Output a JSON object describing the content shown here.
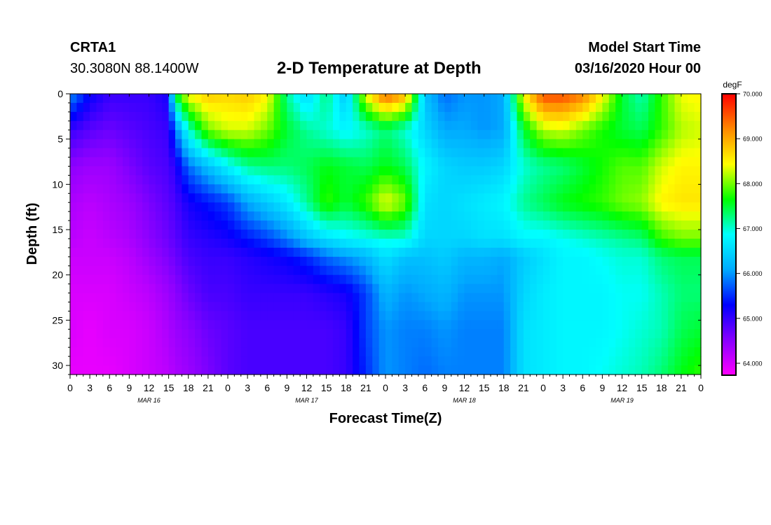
{
  "header": {
    "station": "CRTA1",
    "location": "30.3080N 88.1400W",
    "title": "2-D Temperature at Depth",
    "model_label": "Model Start Time",
    "model_time": "03/16/2020 Hour 00"
  },
  "colorbar": {
    "unit": "degF",
    "ticks": [
      "70.000",
      "69.000",
      "68.000",
      "67.000",
      "66.000",
      "65.000",
      "64.000"
    ]
  },
  "chart_data": {
    "type": "heatmap",
    "title": "2-D Temperature at Depth",
    "xlabel": "Forecast Time(Z)",
    "ylabel": "Depth (ft)",
    "x_tick_labels": [
      "0",
      "3",
      "6",
      "9",
      "12",
      "15",
      "18",
      "21",
      "0",
      "3",
      "6",
      "9",
      "12",
      "15",
      "18",
      "21",
      "0",
      "3",
      "6",
      "9",
      "12",
      "15",
      "18",
      "21",
      "0",
      "3",
      "6",
      "9",
      "12",
      "15",
      "18",
      "21",
      "0"
    ],
    "date_labels": [
      "MAR 16",
      "MAR 17",
      "MAR 18",
      "MAR 19"
    ],
    "xlim_hours": [
      0,
      96
    ],
    "y_tick_labels": [
      "0",
      "5",
      "10",
      "15",
      "20",
      "25",
      "30"
    ],
    "ylim_ft": [
      0,
      31
    ],
    "y_inverted": true,
    "value_range_degF": [
      63.75,
      70.0
    ],
    "colormap": [
      "#ff00ff",
      "#8800ff",
      "#0000ff",
      "#00aaff",
      "#00ffff",
      "#00ff00",
      "#ffff00",
      "#ff8800",
      "#ff0000"
    ],
    "depth_knots_ft": [
      0,
      4,
      8,
      12,
      16,
      18,
      22,
      26,
      31
    ],
    "time_knots_hours": [
      0,
      3,
      6,
      9,
      12,
      15,
      16,
      18,
      21,
      24,
      27,
      30,
      33,
      36,
      39,
      42,
      45,
      48,
      51,
      54,
      57,
      60,
      63,
      66,
      69,
      72,
      75,
      78,
      81,
      84,
      87,
      90,
      93,
      96
    ],
    "temperature_degF": [
      [
        66.0,
        65.0,
        64.5,
        64.3,
        64.2,
        64.1,
        64.0,
        64.0,
        63.9
      ],
      [
        65.3,
        64.8,
        64.4,
        64.2,
        64.1,
        64.1,
        64.0,
        63.9,
        63.9
      ],
      [
        65.0,
        64.7,
        64.4,
        64.3,
        64.2,
        64.1,
        64.0,
        64.0,
        63.9
      ],
      [
        65.0,
        64.8,
        64.6,
        64.4,
        64.3,
        64.2,
        64.1,
        64.0,
        64.0
      ],
      [
        65.0,
        64.9,
        64.8,
        64.6,
        64.5,
        64.4,
        64.2,
        64.1,
        64.1
      ],
      [
        65.2,
        65.0,
        64.9,
        64.8,
        64.7,
        64.6,
        64.4,
        64.3,
        64.2
      ],
      [
        67.5,
        65.8,
        65.1,
        64.9,
        64.8,
        64.7,
        64.5,
        64.4,
        64.3
      ],
      [
        68.5,
        67.0,
        65.8,
        65.2,
        65.0,
        64.9,
        64.7,
        64.5,
        64.4
      ],
      [
        68.8,
        68.0,
        66.3,
        65.4,
        65.1,
        65.0,
        64.9,
        64.7,
        64.6
      ],
      [
        68.7,
        68.3,
        66.8,
        65.6,
        65.2,
        65.0,
        64.9,
        64.8,
        64.8
      ],
      [
        68.8,
        68.3,
        67.2,
        66.1,
        65.4,
        65.1,
        65.0,
        64.9,
        64.9
      ],
      [
        68.5,
        68.0,
        67.3,
        66.4,
        65.6,
        65.2,
        65.0,
        64.9,
        64.9
      ],
      [
        67.2,
        67.5,
        67.3,
        66.7,
        65.9,
        65.3,
        65.0,
        64.9,
        64.9
      ],
      [
        66.5,
        67.2,
        67.4,
        67.2,
        66.3,
        65.5,
        65.0,
        64.9,
        64.9
      ],
      [
        67.3,
        67.0,
        67.6,
        67.8,
        66.6,
        65.8,
        65.1,
        64.9,
        64.9
      ],
      [
        66.3,
        66.8,
        67.5,
        67.5,
        66.8,
        66.0,
        65.2,
        65.0,
        65.0
      ],
      [
        68.4,
        67.0,
        67.4,
        67.8,
        66.9,
        66.2,
        65.6,
        65.6,
        65.5
      ],
      [
        69.5,
        67.3,
        67.6,
        68.4,
        67.0,
        66.6,
        66.2,
        66.0,
        66.0
      ],
      [
        69.0,
        67.0,
        67.4,
        68.0,
        67.0,
        66.3,
        66.0,
        65.9,
        65.9
      ],
      [
        66.3,
        66.5,
        66.8,
        66.6,
        66.5,
        66.3,
        66.1,
        65.9,
        65.8
      ],
      [
        65.8,
        66.1,
        66.5,
        66.5,
        66.5,
        66.4,
        66.2,
        66.0,
        65.9
      ],
      [
        66.0,
        66.1,
        66.4,
        66.6,
        66.5,
        66.2,
        66.0,
        65.9,
        65.9
      ],
      [
        66.0,
        66.0,
        66.4,
        66.7,
        66.6,
        66.2,
        66.0,
        65.9,
        65.9
      ],
      [
        66.1,
        66.1,
        66.5,
        66.8,
        66.6,
        66.1,
        66.0,
        65.9,
        65.9
      ],
      [
        68.5,
        67.5,
        67.0,
        67.2,
        66.8,
        66.4,
        66.5,
        66.6,
        66.6
      ],
      [
        69.6,
        68.2,
        67.2,
        67.4,
        66.8,
        66.6,
        66.7,
        66.7,
        66.7
      ],
      [
        69.6,
        68.3,
        67.3,
        67.6,
        66.9,
        66.8,
        66.8,
        66.8,
        66.8
      ],
      [
        69.3,
        68.0,
        67.5,
        67.7,
        67.0,
        66.8,
        66.8,
        66.8,
        66.8
      ],
      [
        68.5,
        67.7,
        67.7,
        67.8,
        67.1,
        66.9,
        66.8,
        66.8,
        66.9
      ],
      [
        67.5,
        67.5,
        67.9,
        68.0,
        67.2,
        67.0,
        66.9,
        66.9,
        67.0
      ],
      [
        67.1,
        67.4,
        67.9,
        68.1,
        67.3,
        67.0,
        66.9,
        67.0,
        67.1
      ],
      [
        67.8,
        67.8,
        68.3,
        68.5,
        67.8,
        67.3,
        67.1,
        67.1,
        67.3
      ],
      [
        68.4,
        68.2,
        68.5,
        68.6,
        68.0,
        67.4,
        67.3,
        67.4,
        67.6
      ],
      [
        68.5,
        68.3,
        68.5,
        68.6,
        68.0,
        67.4,
        67.3,
        67.5,
        67.8
      ]
    ]
  }
}
